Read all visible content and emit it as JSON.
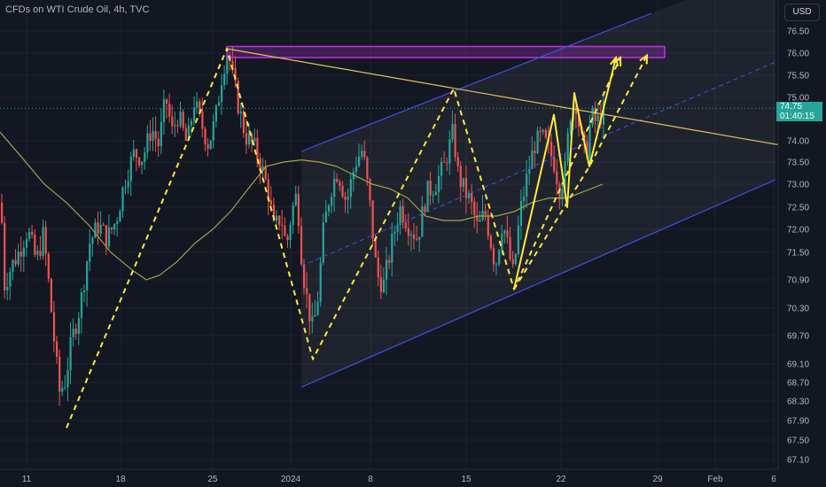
{
  "header": {
    "title": "CFDs on WTI Crude Oil, 4h, TVC",
    "currency": "USD"
  },
  "last_price": {
    "value": "74.75",
    "countdown": "01:40:15"
  },
  "colors": {
    "background": "#131722",
    "up": "#26a69a",
    "down": "#ef5350",
    "channel": "#4051e8",
    "annotation": "#ffeb3b",
    "resistance_box": "#c12ee6",
    "moving_average": "#a0a04a"
  },
  "chart_data": {
    "type": "candlestick",
    "title": "CFDs on WTI Crude Oil, 4h, TVC",
    "xlabel": "",
    "ylabel": "",
    "y_ticks": [
      "76.50",
      "76.00",
      "75.50",
      "75.00",
      "74.00",
      "73.50",
      "73.00",
      "72.50",
      "72.00",
      "71.50",
      "70.90",
      "70.30",
      "69.70",
      "69.10",
      "68.70",
      "68.30",
      "67.90",
      "67.50",
      "67.10"
    ],
    "x_ticks": [
      "11",
      "18",
      "25",
      "2024",
      "8",
      "15",
      "22",
      "29",
      "Feb",
      "6"
    ],
    "ylim": [
      67.0,
      76.9
    ],
    "grid": true,
    "last_price": 74.75,
    "price_path": [
      [
        0,
        72.6
      ],
      [
        4,
        70.8
      ],
      [
        12,
        71.2
      ],
      [
        20,
        71.5
      ],
      [
        30,
        72.0
      ],
      [
        40,
        71.3
      ],
      [
        48,
        71.9
      ],
      [
        55,
        70.6
      ],
      [
        62,
        69.2
      ],
      [
        66,
        68.5
      ],
      [
        72,
        68.7
      ],
      [
        80,
        69.6
      ],
      [
        90,
        70.4
      ],
      [
        100,
        71.7
      ],
      [
        110,
        72.1
      ],
      [
        120,
        71.8
      ],
      [
        130,
        72.2
      ],
      [
        140,
        73.1
      ],
      [
        150,
        73.7
      ],
      [
        160,
        73.6
      ],
      [
        170,
        74.3
      ],
      [
        178,
        73.9
      ],
      [
        186,
        75.0
      ],
      [
        193,
        74.2
      ],
      [
        200,
        74.6
      ],
      [
        210,
        73.9
      ],
      [
        218,
        74.9
      ],
      [
        226,
        74.4
      ],
      [
        234,
        73.9
      ],
      [
        242,
        74.5
      ],
      [
        250,
        75.6
      ],
      [
        256,
        76.1
      ],
      [
        262,
        75.4
      ],
      [
        268,
        74.8
      ],
      [
        276,
        74.1
      ],
      [
        285,
        73.9
      ],
      [
        294,
        73.4
      ],
      [
        302,
        72.8
      ],
      [
        308,
        72.0
      ],
      [
        316,
        72.3
      ],
      [
        322,
        71.6
      ],
      [
        328,
        72.4
      ],
      [
        334,
        72.8
      ],
      [
        340,
        71.2
      ],
      [
        346,
        70.4
      ],
      [
        352,
        69.8
      ],
      [
        358,
        70.6
      ],
      [
        364,
        72.0
      ],
      [
        372,
        72.9
      ],
      [
        380,
        73.3
      ],
      [
        390,
        72.6
      ],
      [
        400,
        73.5
      ],
      [
        408,
        73.8
      ],
      [
        416,
        72.6
      ],
      [
        424,
        71.0
      ],
      [
        432,
        70.8
      ],
      [
        440,
        71.6
      ],
      [
        450,
        72.5
      ],
      [
        460,
        72.1
      ],
      [
        470,
        71.8
      ],
      [
        480,
        72.8
      ],
      [
        490,
        73.0
      ],
      [
        500,
        73.4
      ],
      [
        510,
        74.2
      ],
      [
        516,
        73.2
      ],
      [
        522,
        72.9
      ],
      [
        530,
        72.6
      ],
      [
        538,
        72.0
      ],
      [
        546,
        72.4
      ],
      [
        552,
        71.8
      ],
      [
        558,
        71.2
      ],
      [
        566,
        72.2
      ],
      [
        572,
        71.6
      ],
      [
        578,
        71.0
      ],
      [
        586,
        72.4
      ],
      [
        594,
        73.2
      ],
      [
        602,
        73.9
      ],
      [
        610,
        74.1
      ],
      [
        618,
        73.8
      ],
      [
        624,
        73.5
      ],
      [
        630,
        72.9
      ],
      [
        636,
        73.2
      ],
      [
        642,
        74.6
      ],
      [
        648,
        75.0
      ],
      [
        654,
        74.1
      ],
      [
        660,
        73.6
      ],
      [
        666,
        74.6
      ],
      [
        672,
        74.4
      ],
      [
        680,
        74.7
      ]
    ],
    "moving_average": [
      [
        0,
        74.2
      ],
      [
        25,
        73.6
      ],
      [
        50,
        73.0
      ],
      [
        75,
        72.6
      ],
      [
        100,
        72.1
      ],
      [
        125,
        71.5
      ],
      [
        150,
        71.1
      ],
      [
        165,
        70.9
      ],
      [
        180,
        71.0
      ],
      [
        200,
        71.3
      ],
      [
        220,
        71.7
      ],
      [
        240,
        72.0
      ],
      [
        260,
        72.4
      ],
      [
        280,
        72.9
      ],
      [
        300,
        73.4
      ],
      [
        320,
        73.5
      ],
      [
        340,
        73.55
      ],
      [
        360,
        73.5
      ],
      [
        380,
        73.4
      ],
      [
        400,
        73.2
      ],
      [
        420,
        73.0
      ],
      [
        440,
        72.9
      ],
      [
        460,
        72.7
      ],
      [
        480,
        72.3
      ],
      [
        500,
        72.2
      ],
      [
        520,
        72.2
      ],
      [
        540,
        72.3
      ],
      [
        560,
        72.3
      ],
      [
        580,
        72.4
      ],
      [
        600,
        72.6
      ],
      [
        620,
        72.7
      ],
      [
        640,
        72.7
      ],
      [
        660,
        72.85
      ],
      [
        680,
        73.0
      ]
    ],
    "channel": {
      "upper": [
        [
          340,
          73.75
        ],
        [
          735,
          76.9
        ]
      ],
      "lower": [
        [
          340,
          68.6
        ],
        [
          875,
          73.1
        ]
      ],
      "median": [
        [
          340,
          71.2
        ],
        [
          875,
          75.8
        ]
      ]
    },
    "trendline": [
      [
        256,
        76.1
      ],
      [
        880,
        73.9
      ]
    ],
    "resistance_zone": {
      "x": [
        256,
        750
      ],
      "y": [
        75.9,
        76.15
      ]
    },
    "zigzag_dashed": [
      [
        75,
        67.75
      ],
      [
        256,
        76.1
      ],
      [
        353,
        69.2
      ],
      [
        512,
        75.2
      ],
      [
        580,
        70.7
      ],
      [
        700,
        75.9
      ]
    ],
    "zigzag_second_dashed": [
      [
        580,
        70.7
      ],
      [
        665,
        73.4
      ],
      [
        730,
        75.95
      ]
    ],
    "zigzag_solid": [
      [
        580,
        70.7
      ],
      [
        625,
        74.6
      ],
      [
        640,
        72.5
      ],
      [
        648,
        75.1
      ],
      [
        665,
        73.4
      ],
      [
        695,
        75.9
      ]
    ]
  }
}
